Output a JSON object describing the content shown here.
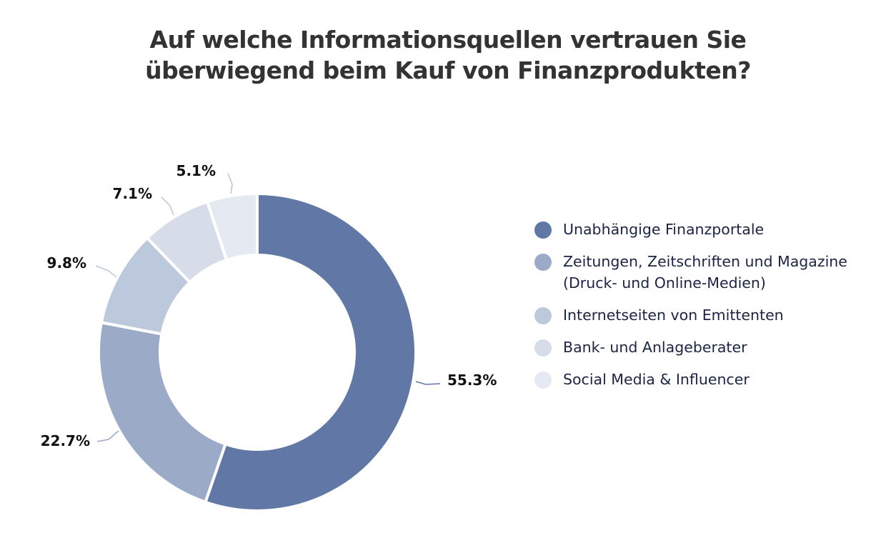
{
  "chart_data": {
    "type": "pie",
    "variant": "donut",
    "title": [
      "Auf welche Informationsquellen vertrauen Sie",
      "überwiegend beim Kauf von Finanzprodukten?"
    ],
    "unit": "%",
    "slices": [
      {
        "label": [
          "Unabhängige Finanzportale"
        ],
        "value": 55.3,
        "display": "55.3%",
        "color": "#6178a6"
      },
      {
        "label": [
          "Zeitungen, Zeitschriften und Magazine",
          "(Druck- und Online-Medien)"
        ],
        "value": 22.7,
        "display": "22.7%",
        "color": "#9aaac7"
      },
      {
        "label": [
          "Internetseiten von Emittenten"
        ],
        "value": 9.8,
        "display": "9.8%",
        "color": "#bcc8db"
      },
      {
        "label": [
          "Bank- und Anlageberater"
        ],
        "value": 7.1,
        "display": "7.1%",
        "color": "#d6dde9"
      },
      {
        "label": [
          "Social Media & Influencer"
        ],
        "value": 5.1,
        "display": "5.1%",
        "color": "#e5e9f2"
      }
    ],
    "legend_position": "right"
  }
}
